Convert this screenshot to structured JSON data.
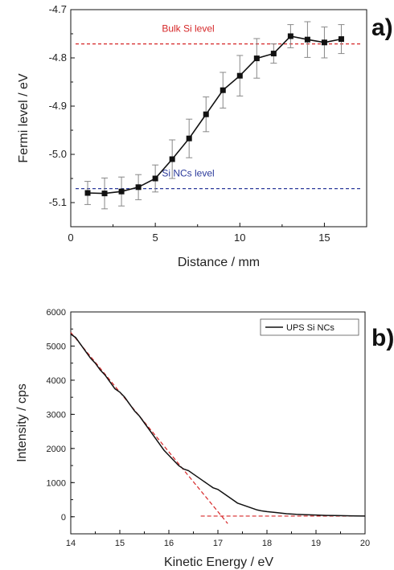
{
  "chart_data": [
    {
      "panel_label": "a)",
      "type": "line",
      "xlabel": "Distance / mm",
      "ylabel": "Fermi level / eV",
      "xlim": [
        0,
        17.5
      ],
      "ylim": [
        -5.15,
        -4.7
      ],
      "x_ticks": [
        "0",
        "5",
        "10",
        "15"
      ],
      "y_ticks": [
        "-4.7",
        "-4.8",
        "-4.9",
        "-5.0",
        "-5.1"
      ],
      "series": [
        {
          "x": [
            1,
            2,
            3,
            4,
            5,
            6,
            7,
            8,
            9,
            10,
            11,
            12,
            13,
            14,
            15,
            16
          ],
          "y": [
            -5.08,
            -5.081,
            -5.077,
            -5.068,
            -5.05,
            -5.01,
            -4.967,
            -4.917,
            -4.867,
            -4.837,
            -4.801,
            -4.791,
            -4.755,
            -4.762,
            -4.768,
            -4.761
          ],
          "error": [
            0.024,
            0.032,
            0.03,
            0.026,
            0.028,
            0.04,
            0.04,
            0.036,
            0.037,
            0.042,
            0.041,
            0.02,
            0.024,
            0.037,
            0.032,
            0.03
          ]
        }
      ],
      "reference_lines": [
        {
          "label": "Bulk Si level",
          "y": -4.771,
          "color": "#d62728"
        },
        {
          "label": "Si NCs level",
          "y": -5.071,
          "color": "#2b3a9b"
        }
      ]
    },
    {
      "panel_label": "b)",
      "type": "line",
      "xlabel": "Kinetic Energy / eV",
      "ylabel": "Intensity / cps",
      "xlim": [
        14,
        20
      ],
      "ylim": [
        -500,
        6000
      ],
      "x_ticks": [
        "14",
        "15",
        "16",
        "17",
        "18",
        "19",
        "20"
      ],
      "y_ticks": [
        "0",
        "1000",
        "2000",
        "3000",
        "4000",
        "5000",
        "6000"
      ],
      "legend": [
        "UPS Si NCs"
      ],
      "legend_position": "top-right",
      "series": [
        {
          "name": "UPS Si NCs",
          "x": [
            14.0,
            14.1,
            14.2,
            14.3,
            14.4,
            14.5,
            14.6,
            14.7,
            14.8,
            14.9,
            15.0,
            15.1,
            15.2,
            15.3,
            15.4,
            15.5,
            15.6,
            15.7,
            15.8,
            15.9,
            16.0,
            16.1,
            16.2,
            16.3,
            16.4,
            16.5,
            16.6,
            16.7,
            16.8,
            16.9,
            17.0,
            17.1,
            17.2,
            17.3,
            17.4,
            17.5,
            17.6,
            17.7,
            17.8,
            17.9,
            18.0,
            18.2,
            18.4,
            18.6,
            18.8,
            19.0,
            19.2,
            19.4,
            19.6,
            19.8,
            20.0
          ],
          "y": [
            5350,
            5250,
            5050,
            4850,
            4650,
            4500,
            4300,
            4150,
            3950,
            3750,
            3650,
            3500,
            3300,
            3100,
            2950,
            2750,
            2550,
            2350,
            2150,
            1950,
            1800,
            1650,
            1500,
            1400,
            1350,
            1250,
            1150,
            1050,
            950,
            850,
            800,
            700,
            600,
            500,
            400,
            350,
            300,
            250,
            200,
            170,
            150,
            120,
            90,
            70,
            60,
            50,
            40,
            35,
            30,
            25,
            20
          ]
        }
      ],
      "fit_lines": [
        {
          "x": [
            14.0,
            17.2
          ],
          "y": [
            5400,
            -200
          ],
          "color": "#d62728"
        },
        {
          "x": [
            16.65,
            20.0
          ],
          "y": [
            20,
            20
          ],
          "color": "#d62728"
        }
      ]
    }
  ]
}
